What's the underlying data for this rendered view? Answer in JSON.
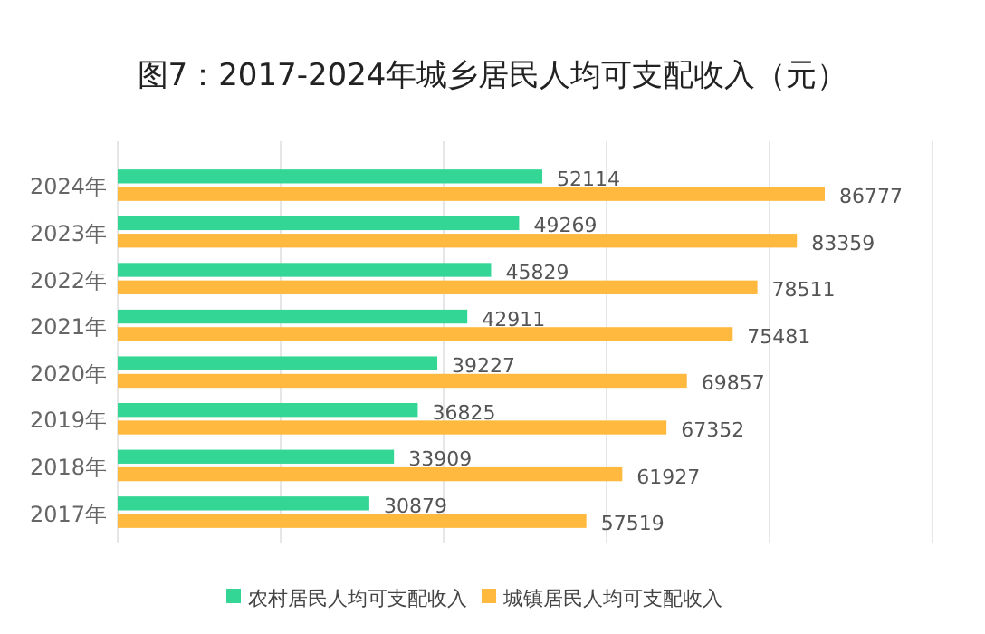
{
  "chart_data": {
    "type": "bar",
    "orientation": "horizontal",
    "title": "图7：2017-2024年城乡居民人均可支配收入（元）",
    "categories": [
      "2024年",
      "2023年",
      "2022年",
      "2021年",
      "2020年",
      "2019年",
      "2018年",
      "2017年"
    ],
    "series": [
      {
        "name": "农村居民人均可支配收入",
        "color": "#33d695",
        "values": [
          52114,
          49269,
          45829,
          42911,
          39227,
          36825,
          33909,
          30879
        ]
      },
      {
        "name": "城镇居民人均可支配收入",
        "color": "#ffb93e",
        "values": [
          86777,
          83359,
          78511,
          75481,
          69857,
          67352,
          61927,
          57519
        ]
      }
    ],
    "xlim": [
      0,
      100000
    ],
    "xticks": [
      {
        "value": 0,
        "label": null
      },
      {
        "value": 20000,
        "label": null
      },
      {
        "value": 40000,
        "label": null
      },
      {
        "value": 60000,
        "label": null
      },
      {
        "value": 80000,
        "label": null
      },
      {
        "value": 100000,
        "label": null
      }
    ],
    "tick_labels": "y",
    "grid": "x",
    "data_labels": true,
    "legend": "bottom"
  }
}
